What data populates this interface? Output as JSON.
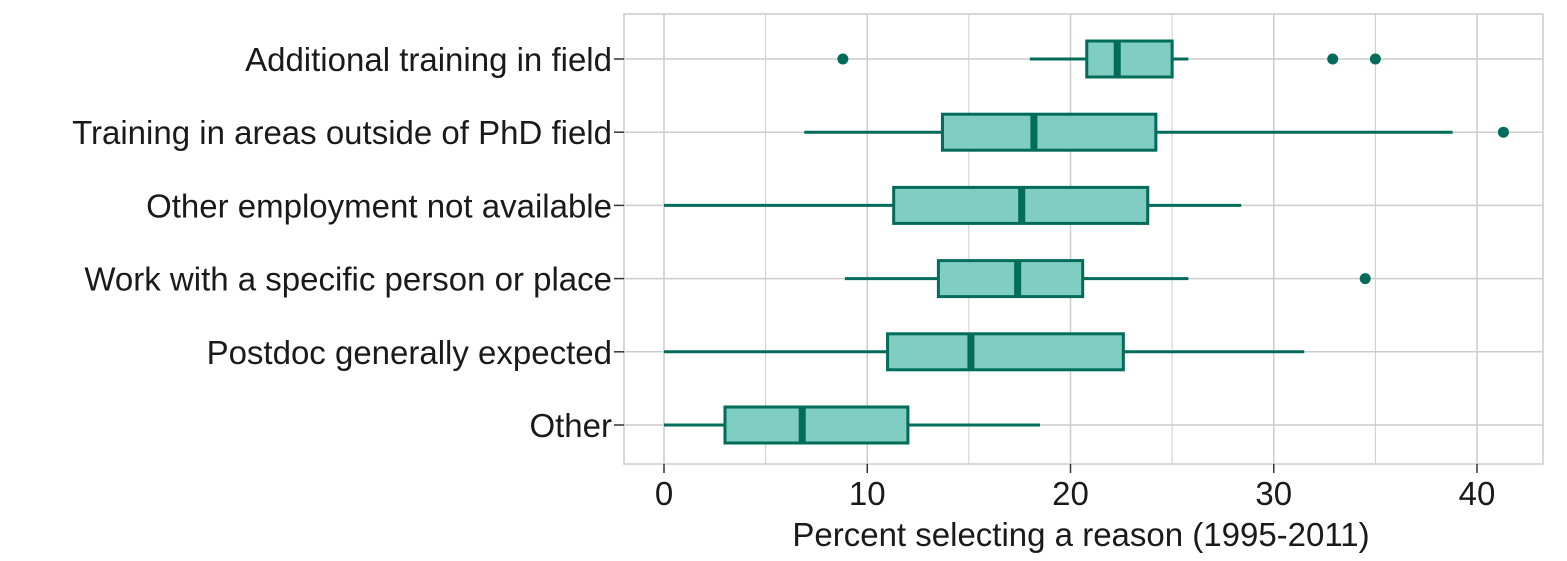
{
  "chart_data": {
    "type": "boxplot",
    "orientation": "horizontal",
    "title": "",
    "xlabel": "Percent selecting a reason (1995-2011)",
    "ylabel": "",
    "xlim": [
      -2,
      43
    ],
    "xticks": [
      0,
      10,
      20,
      30,
      40
    ],
    "xtick_labels": [
      "0",
      "10",
      "20",
      "30",
      "40"
    ],
    "grid": true,
    "legend": "none",
    "categories": [
      "Additional training in field",
      "Training in areas outside of PhD field",
      "Other employment not available",
      "Work with a specific person or place",
      "Postdoc generally expected",
      "Other"
    ],
    "boxes": [
      {
        "min": 18.0,
        "q1": 20.8,
        "median": 22.3,
        "q3": 25.0,
        "max": 25.8,
        "outliers": [
          8.8,
          32.9,
          35.0
        ]
      },
      {
        "min": 6.9,
        "q1": 13.7,
        "median": 18.2,
        "q3": 24.2,
        "max": 38.8,
        "outliers": [
          41.3
        ]
      },
      {
        "min": 0.0,
        "q1": 11.3,
        "median": 17.6,
        "q3": 23.8,
        "max": 28.4,
        "outliers": []
      },
      {
        "min": 8.9,
        "q1": 13.5,
        "median": 17.4,
        "q3": 20.6,
        "max": 25.8,
        "outliers": [
          34.5
        ]
      },
      {
        "min": 0.0,
        "q1": 11.0,
        "median": 15.1,
        "q3": 22.6,
        "max": 31.5,
        "outliers": []
      },
      {
        "min": 0.0,
        "q1": 3.0,
        "median": 6.8,
        "q3": 12.0,
        "max": 18.5,
        "outliers": []
      }
    ],
    "colors": {
      "box_fill": "#80cdc1",
      "box_line": "#016c59",
      "median": "#016c59",
      "outlier": "#016c59",
      "grid": "#cccccc",
      "panel_border": "#cccccc"
    }
  }
}
